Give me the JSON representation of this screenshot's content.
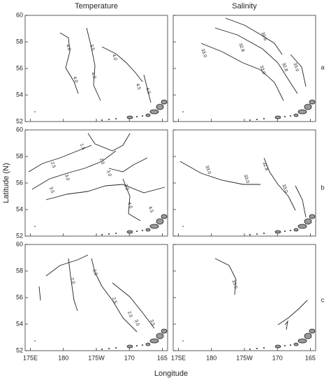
{
  "columns": [
    "Temperature",
    "Salinity"
  ],
  "row_labels": [
    "a",
    "b",
    "c"
  ],
  "x_label": "Longitude",
  "y_label": "Latitude (N)",
  "xlim": [
    174.2,
    195.8
  ],
  "xticks": [
    {
      "value": 175,
      "label": "175E"
    },
    180,
    {
      "value": 185,
      "label": "175W"
    },
    {
      "value": 190,
      "label": "170"
    },
    {
      "value": 195,
      "label": "165"
    }
  ],
  "ylim": [
    52,
    60
  ],
  "yticks": [
    52,
    54,
    56,
    58,
    60
  ],
  "panels": [
    {
      "contour_labels": [
        "4.0",
        "3.5",
        "4.0",
        "4.0",
        "4.0",
        "4.5",
        "4.0"
      ]
    },
    {
      "contour_labels": [
        "33.0",
        "32.8",
        "32.6",
        "33.0",
        "32.8",
        "33.0"
      ]
    },
    {
      "contour_labels": [
        "1.5",
        "2.5",
        "2.5",
        "3.0",
        "3.5",
        "3.0",
        "3.0",
        "4.0",
        "4.5"
      ]
    },
    {
      "contour_labels": [
        "33.0",
        "33.0",
        "32.8",
        "33.0"
      ]
    },
    {
      "contour_labels": [
        "2.0",
        "2.5",
        "2.5",
        "2.5",
        "3.0",
        "3.5"
      ]
    },
    {
      "contour_labels": [
        "33.0"
      ]
    }
  ]
}
